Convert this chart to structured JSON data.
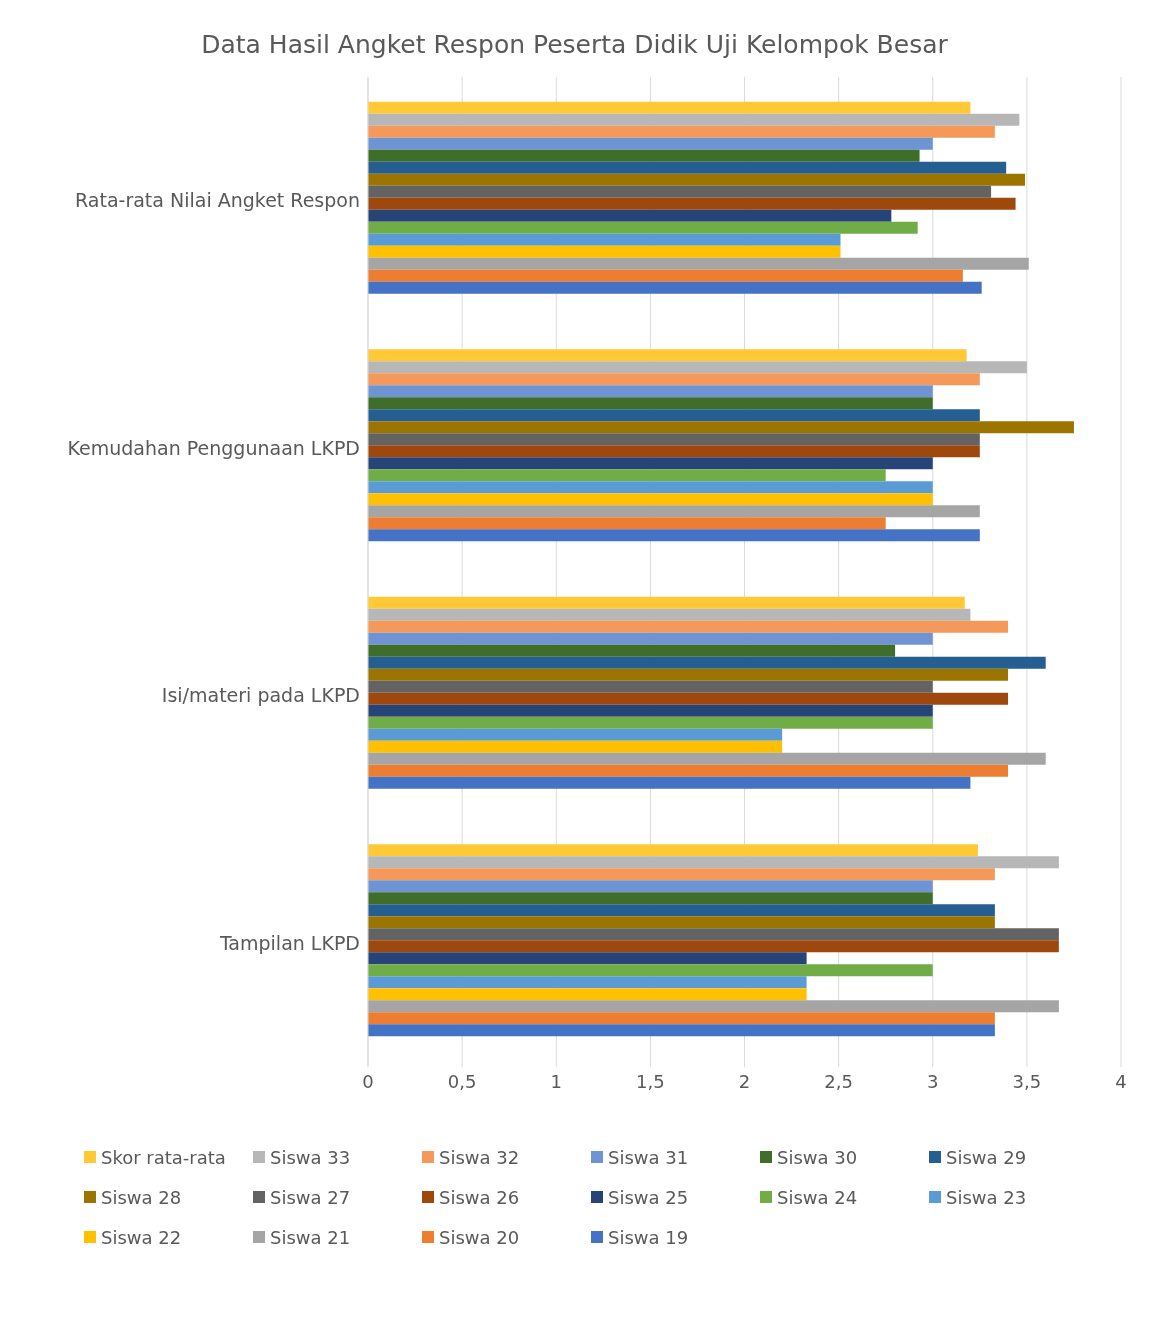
{
  "chart_data": {
    "type": "bar",
    "orientation": "horizontal",
    "title": "Data Hasil Angket Respon Peserta Didik Uji Kelompok Besar",
    "categories": [
      "Rata-rata Nilai Angket Respon",
      "Kemudahan Penggunaan LKPD",
      "Isi/materi pada LKPD",
      "Tampilan LKPD"
    ],
    "series": [
      {
        "name": "Skor rata-rata",
        "color": "#ffc935",
        "values": [
          3.2,
          3.18,
          3.17,
          3.24
        ]
      },
      {
        "name": "Siswa 33",
        "color": "#b7b7b7",
        "values": [
          3.46,
          3.5,
          3.2,
          3.67
        ]
      },
      {
        "name": "Siswa 32",
        "color": "#f4995a",
        "values": [
          3.33,
          3.25,
          3.4,
          3.33
        ]
      },
      {
        "name": "Siswa 31",
        "color": "#6f94d4",
        "values": [
          3,
          3,
          3,
          3
        ]
      },
      {
        "name": "Siswa 30",
        "color": "#3f6e2a",
        "values": [
          2.93,
          3,
          2.8,
          3
        ]
      },
      {
        "name": "Siswa 29",
        "color": "#255e91",
        "values": [
          3.39,
          3.25,
          3.6,
          3.33
        ]
      },
      {
        "name": "Siswa 28",
        "color": "#9c7400",
        "values": [
          3.49,
          3.75,
          3.4,
          3.33
        ]
      },
      {
        "name": "Siswa 27",
        "color": "#636363",
        "values": [
          3.31,
          3.25,
          3,
          3.67
        ]
      },
      {
        "name": "Siswa 26",
        "color": "#9e480e",
        "values": [
          3.44,
          3.25,
          3.4,
          3.67
        ]
      },
      {
        "name": "Siswa 25",
        "color": "#264478",
        "values": [
          2.78,
          3,
          3,
          2.33
        ]
      },
      {
        "name": "Siswa 24",
        "color": "#70ad47",
        "values": [
          2.92,
          2.75,
          3,
          3
        ]
      },
      {
        "name": "Siswa 23",
        "color": "#5b9bd5",
        "values": [
          2.51,
          3,
          2.2,
          2.33
        ]
      },
      {
        "name": "Siswa 22",
        "color": "#ffc000",
        "values": [
          2.51,
          3,
          2.2,
          2.33
        ]
      },
      {
        "name": "Siswa 21",
        "color": "#a5a5a5",
        "values": [
          3.51,
          3.25,
          3.6,
          3.67
        ]
      },
      {
        "name": "Siswa 20",
        "color": "#ed7d31",
        "values": [
          3.16,
          2.75,
          3.4,
          3.33
        ]
      },
      {
        "name": "Siswa 19",
        "color": "#4472c4",
        "values": [
          3.26,
          3.25,
          3.2,
          3.33
        ]
      }
    ],
    "xlim": [
      0,
      4
    ],
    "xticks": [
      0,
      {
        "value": 0.5,
        "label": "0,5"
      },
      1,
      {
        "value": 1.5,
        "label": "1,5"
      },
      2,
      {
        "value": 2.5,
        "label": "2,5"
      },
      3,
      {
        "value": 3.5,
        "label": "3,5"
      },
      4
    ],
    "grid": "x",
    "legend": "bottom"
  }
}
